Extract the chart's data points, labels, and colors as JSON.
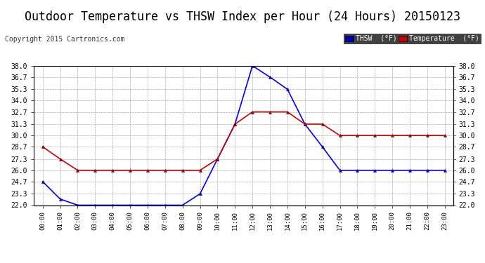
{
  "title": "Outdoor Temperature vs THSW Index per Hour (24 Hours) 20150123",
  "copyright": "Copyright 2015 Cartronics.com",
  "legend_thsw": "THSW  (°F)",
  "legend_temp": "Temperature  (°F)",
  "hours": [
    "00:00",
    "01:00",
    "02:00",
    "03:00",
    "04:00",
    "05:00",
    "06:00",
    "07:00",
    "08:00",
    "09:00",
    "10:00",
    "11:00",
    "12:00",
    "13:00",
    "14:00",
    "15:00",
    "16:00",
    "17:00",
    "18:00",
    "19:00",
    "20:00",
    "21:00",
    "22:00",
    "23:00"
  ],
  "thsw": [
    24.7,
    22.7,
    22.0,
    22.0,
    22.0,
    22.0,
    22.0,
    22.0,
    22.0,
    23.3,
    27.3,
    31.3,
    38.0,
    36.7,
    35.3,
    31.3,
    28.7,
    26.0,
    26.0,
    26.0,
    26.0,
    26.0,
    26.0,
    26.0
  ],
  "temperature": [
    28.7,
    27.3,
    26.0,
    26.0,
    26.0,
    26.0,
    26.0,
    26.0,
    26.0,
    26.0,
    27.3,
    31.3,
    32.7,
    32.7,
    32.7,
    31.3,
    31.3,
    30.0,
    30.0,
    30.0,
    30.0,
    30.0,
    30.0,
    30.0
  ],
  "ylim_min": 22.0,
  "ylim_max": 38.0,
  "yticks": [
    22.0,
    23.3,
    24.7,
    26.0,
    27.3,
    28.7,
    30.0,
    31.3,
    32.7,
    34.0,
    35.3,
    36.7,
    38.0
  ],
  "thsw_color": "#0000ff",
  "temp_color": "#cc0000",
  "bg_color": "#ffffff",
  "grid_color": "#aaaaaa",
  "title_color": "#000000",
  "title_fontsize": 12,
  "copyright_fontsize": 7,
  "legend_thsw_bg": "#0000bb",
  "legend_temp_bg": "#cc0000",
  "marker_size": 3,
  "linewidth": 1.2
}
